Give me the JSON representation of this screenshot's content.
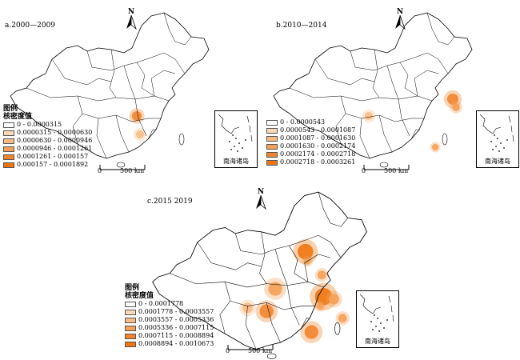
{
  "colors": {
    "ramp": [
      "#ffffff",
      "#fbd9b8",
      "#f8bd86",
      "#f4a058",
      "#f1852d",
      "#ee7510"
    ],
    "border": "#000000",
    "hotspot": "#f39a4a"
  },
  "north_label": "N",
  "inset_label": "南海诸岛",
  "legend_title_1": "图例",
  "legend_title_2": "核密度值",
  "panels": [
    {
      "title": "a.2000—2009",
      "scale_zero": "0",
      "scale_label": "500 km",
      "ranges": [
        "0 - 0.0000315",
        "0.0000315 - 0.0000630",
        "0.0000630 - 0.0000946",
        "0.0000946 - 0.0001261",
        "0.0001261 - 0.000157",
        "0.000157 - 0.0001892"
      ]
    },
    {
      "title": "b.2010—2014",
      "scale_zero": "0",
      "scale_label": "500 km",
      "ranges": [
        "0 - 0.0000543",
        "0.0000543 - 0.0001087",
        "0.0001087 - 0.0001630",
        "0.0001630 - 0.0002174",
        "0.0002174 - 0.0002718",
        "0.0002718 - 0.0003261"
      ]
    },
    {
      "title": "c.2015    2019",
      "scale_zero": "0",
      "scale_label": "500 km",
      "ranges": [
        "0 - 0.0001778",
        "0.0001778 - 0.0003557",
        "0.0003557 - 0.0005336",
        "0.0005336 - 0.0007115",
        "0.0007115 - 0.0008894",
        "0.0008894 - 0.0010673"
      ]
    }
  ]
}
